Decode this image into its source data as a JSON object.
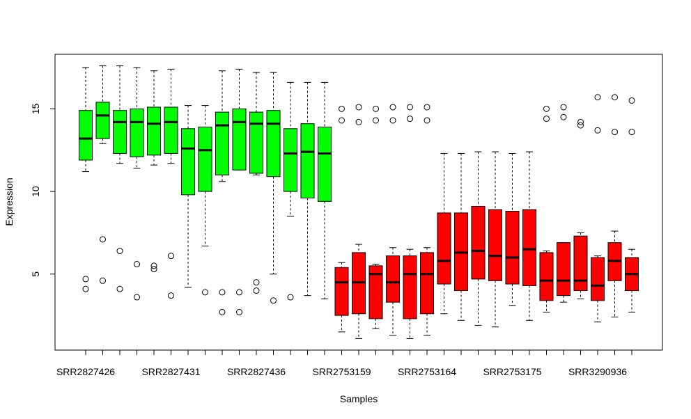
{
  "chart_data": {
    "type": "boxplot",
    "title": "",
    "xlabel": "Samples",
    "ylabel": "Expression",
    "ylim": [
      0.4,
      18.3
    ],
    "yticks": [
      5,
      10,
      15
    ],
    "x_tick_labels": [
      {
        "index": 1,
        "label": "SRR2827426"
      },
      {
        "index": 6,
        "label": "SRR2827431"
      },
      {
        "index": 11,
        "label": "SRR2827436"
      },
      {
        "index": 16,
        "label": "SRR2753159"
      },
      {
        "index": 21,
        "label": "SRR2753164"
      },
      {
        "index": 26,
        "label": "SRR2753175"
      },
      {
        "index": 31,
        "label": "SRR3290936"
      }
    ],
    "colors": {
      "group1": "#00ff00",
      "group2": "#ff0000",
      "outline": "#000000"
    },
    "grid": false,
    "legend": "none",
    "boxes": [
      {
        "index": 1,
        "group": "group1",
        "whisker_low": 11.2,
        "q1": 11.9,
        "median": 13.2,
        "q3": 14.9,
        "whisker_high": 17.5,
        "outliers": [
          4.7,
          4.1
        ]
      },
      {
        "index": 2,
        "group": "group1",
        "whisker_low": 12.9,
        "q1": 13.2,
        "median": 14.6,
        "q3": 15.4,
        "whisker_high": 17.6,
        "outliers": [
          7.1,
          4.6
        ]
      },
      {
        "index": 3,
        "group": "group1",
        "whisker_low": 11.7,
        "q1": 12.3,
        "median": 14.2,
        "q3": 14.9,
        "whisker_high": 17.6,
        "outliers": [
          6.4,
          4.1
        ]
      },
      {
        "index": 4,
        "group": "group1",
        "whisker_low": 11.4,
        "q1": 12.1,
        "median": 14.2,
        "q3": 15.0,
        "whisker_high": 17.5,
        "outliers": [
          5.6,
          3.6
        ]
      },
      {
        "index": 5,
        "group": "group1",
        "whisker_low": 11.6,
        "q1": 12.2,
        "median": 14.1,
        "q3": 15.1,
        "whisker_high": 17.3,
        "outliers": [
          5.5,
          5.3
        ]
      },
      {
        "index": 6,
        "group": "group1",
        "whisker_low": 11.7,
        "q1": 12.3,
        "median": 14.2,
        "q3": 15.1,
        "whisker_high": 17.4,
        "outliers": [
          6.1,
          3.7
        ]
      },
      {
        "index": 7,
        "group": "group1",
        "whisker_low": 4.2,
        "q1": 9.8,
        "median": 12.6,
        "q3": 13.8,
        "whisker_high": 15.2,
        "outliers": []
      },
      {
        "index": 8,
        "group": "group1",
        "whisker_low": 6.7,
        "q1": 10.0,
        "median": 12.5,
        "q3": 13.9,
        "whisker_high": 15.2,
        "outliers": [
          3.9
        ]
      },
      {
        "index": 9,
        "group": "group1",
        "whisker_low": 10.6,
        "q1": 11.0,
        "median": 14.0,
        "q3": 14.8,
        "whisker_high": 17.3,
        "outliers": [
          3.9,
          2.7
        ]
      },
      {
        "index": 10,
        "group": "group1",
        "whisker_low": 11.3,
        "q1": 11.3,
        "median": 14.2,
        "q3": 15.0,
        "whisker_high": 17.4,
        "outliers": [
          3.9,
          2.7
        ]
      },
      {
        "index": 11,
        "group": "group1",
        "whisker_low": 11.0,
        "q1": 11.1,
        "median": 14.1,
        "q3": 14.8,
        "whisker_high": 17.2,
        "outliers": [
          4.5,
          4.0
        ]
      },
      {
        "index": 12,
        "group": "group1",
        "whisker_low": 5.0,
        "q1": 10.9,
        "median": 14.1,
        "q3": 14.9,
        "whisker_high": 17.2,
        "outliers": [
          3.4
        ]
      },
      {
        "index": 13,
        "group": "group1",
        "whisker_low": 8.5,
        "q1": 10.0,
        "median": 12.3,
        "q3": 13.8,
        "whisker_high": 16.6,
        "outliers": [
          3.6
        ]
      },
      {
        "index": 14,
        "group": "group1",
        "whisker_low": 3.7,
        "q1": 9.6,
        "median": 12.4,
        "q3": 14.1,
        "whisker_high": 16.6,
        "outliers": []
      },
      {
        "index": 15,
        "group": "group1",
        "whisker_low": 3.5,
        "q1": 9.4,
        "median": 12.3,
        "q3": 13.9,
        "whisker_high": 16.6,
        "outliers": []
      },
      {
        "index": 16,
        "group": "group2",
        "whisker_low": 1.5,
        "q1": 2.5,
        "median": 4.5,
        "q3": 5.4,
        "whisker_high": 5.7,
        "outliers": [
          15.0,
          14.3
        ]
      },
      {
        "index": 17,
        "group": "group2",
        "whisker_low": 1.1,
        "q1": 2.6,
        "median": 4.5,
        "q3": 6.3,
        "whisker_high": 6.8,
        "outliers": [
          15.1,
          14.2
        ]
      },
      {
        "index": 18,
        "group": "group2",
        "whisker_low": 1.7,
        "q1": 2.3,
        "median": 5.0,
        "q3": 5.5,
        "whisker_high": 5.6,
        "outliers": [
          15.0,
          14.3
        ]
      },
      {
        "index": 19,
        "group": "group2",
        "whisker_low": 1.3,
        "q1": 3.3,
        "median": 4.5,
        "q3": 6.1,
        "whisker_high": 6.6,
        "outliers": [
          15.1,
          14.3
        ]
      },
      {
        "index": 20,
        "group": "group2",
        "whisker_low": 1.1,
        "q1": 2.3,
        "median": 5.0,
        "q3": 6.1,
        "whisker_high": 6.5,
        "outliers": [
          15.1,
          14.4
        ]
      },
      {
        "index": 21,
        "group": "group2",
        "whisker_low": 1.3,
        "q1": 2.6,
        "median": 5.0,
        "q3": 6.3,
        "whisker_high": 6.6,
        "outliers": [
          15.1,
          14.3
        ]
      },
      {
        "index": 22,
        "group": "group2",
        "whisker_low": 2.6,
        "q1": 4.4,
        "median": 5.8,
        "q3": 8.7,
        "whisker_high": 12.3,
        "outliers": []
      },
      {
        "index": 23,
        "group": "group2",
        "whisker_low": 2.2,
        "q1": 4.0,
        "median": 6.3,
        "q3": 8.7,
        "whisker_high": 12.3,
        "outliers": []
      },
      {
        "index": 24,
        "group": "group2",
        "whisker_low": 1.9,
        "q1": 4.7,
        "median": 6.4,
        "q3": 9.1,
        "whisker_high": 12.4,
        "outliers": []
      },
      {
        "index": 25,
        "group": "group2",
        "whisker_low": 1.8,
        "q1": 4.6,
        "median": 6.1,
        "q3": 8.9,
        "whisker_high": 12.4,
        "outliers": []
      },
      {
        "index": 26,
        "group": "group2",
        "whisker_low": 3.1,
        "q1": 4.4,
        "median": 6.0,
        "q3": 8.8,
        "whisker_high": 12.3,
        "outliers": []
      },
      {
        "index": 27,
        "group": "group2",
        "whisker_low": 2.2,
        "q1": 4.3,
        "median": 6.5,
        "q3": 8.9,
        "whisker_high": 12.4,
        "outliers": []
      },
      {
        "index": 28,
        "group": "group2",
        "whisker_low": 2.7,
        "q1": 3.4,
        "median": 4.6,
        "q3": 6.3,
        "whisker_high": 6.4,
        "outliers": [
          15.0,
          14.4
        ]
      },
      {
        "index": 29,
        "group": "group2",
        "whisker_low": 3.3,
        "q1": 3.7,
        "median": 4.6,
        "q3": 6.9,
        "whisker_high": 6.9,
        "outliers": [
          15.1,
          14.5
        ]
      },
      {
        "index": 30,
        "group": "group2",
        "whisker_low": 3.5,
        "q1": 4.0,
        "median": 4.6,
        "q3": 7.3,
        "whisker_high": 7.5,
        "outliers": [
          14.2,
          14.0
        ]
      },
      {
        "index": 31,
        "group": "group2",
        "whisker_low": 2.1,
        "q1": 3.4,
        "median": 4.3,
        "q3": 6.0,
        "whisker_high": 6.1,
        "outliers": [
          15.7,
          13.7
        ]
      },
      {
        "index": 32,
        "group": "group2",
        "whisker_low": 2.4,
        "q1": 4.6,
        "median": 5.8,
        "q3": 6.9,
        "whisker_high": 7.6,
        "outliers": [
          15.7,
          13.6
        ]
      },
      {
        "index": 33,
        "group": "group2",
        "whisker_low": 2.7,
        "q1": 4.0,
        "median": 5.0,
        "q3": 6.0,
        "whisker_high": 6.5,
        "outliers": [
          15.5,
          13.6
        ]
      }
    ]
  }
}
